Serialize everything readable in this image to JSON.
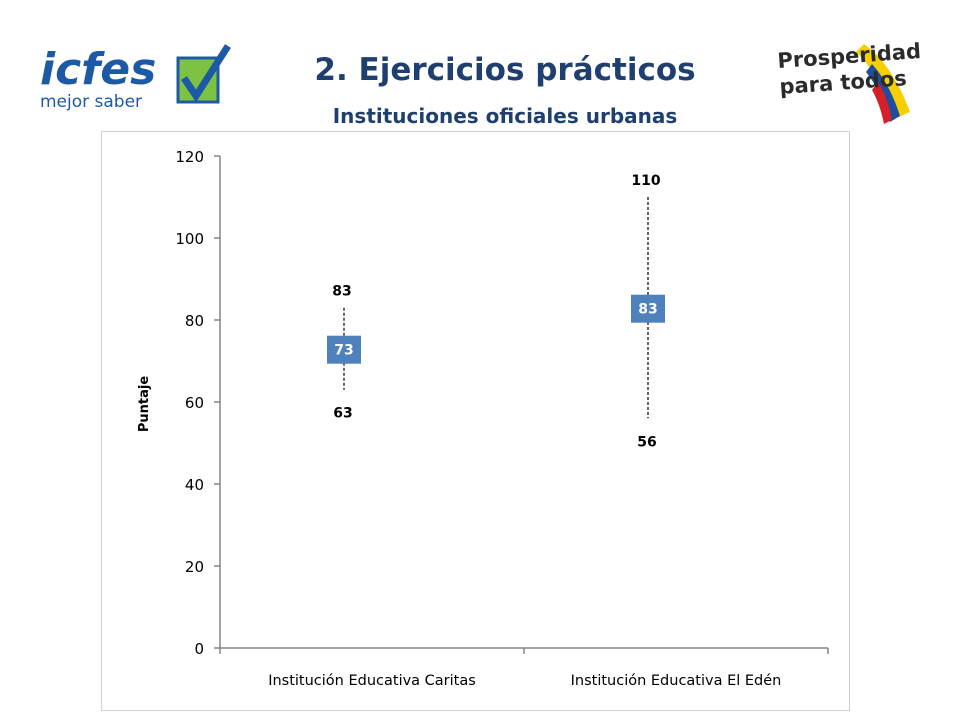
{
  "header": {
    "title": "2. Ejercicios prácticos",
    "subtitle": "Instituciones oficiales urbanas"
  },
  "logos": {
    "left": {
      "main": "icfes",
      "sub": "mejor saber",
      "colors": {
        "blue": "#1d5aa6",
        "green": "#7dc242"
      }
    },
    "right": {
      "line1": "Prosperidad",
      "line2": "para todos",
      "colors": {
        "text": "#2b2b2b",
        "yellow": "#f5d000",
        "blue": "#1f4ea1",
        "red": "#d62027"
      }
    }
  },
  "chart_data": {
    "type": "range",
    "ylabel": "Puntaje",
    "xlabel": "",
    "title": "",
    "ylim": [
      0,
      120
    ],
    "yticks": [
      0,
      20,
      40,
      60,
      80,
      100,
      120
    ],
    "categories": [
      "Institución Educativa  Caritas",
      "Institución Educativa  El Edén"
    ],
    "ranges": [
      {
        "low": 63,
        "mid": 73,
        "high": 83
      },
      {
        "low": 56,
        "mid": 83,
        "high": 110
      }
    ],
    "grid": false,
    "legend": "none",
    "colors": {
      "marker": "#4f81bd",
      "axis": "#868686",
      "whisker": "#000000"
    }
  }
}
